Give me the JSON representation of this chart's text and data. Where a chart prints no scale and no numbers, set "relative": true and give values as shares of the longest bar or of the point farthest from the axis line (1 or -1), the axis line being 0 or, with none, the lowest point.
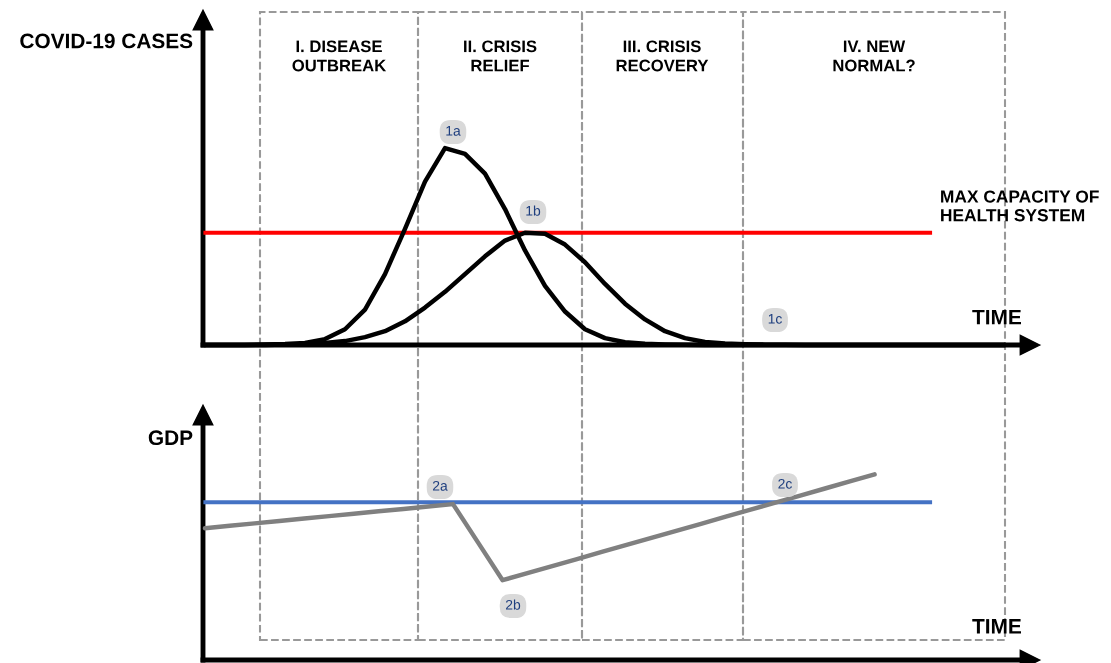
{
  "chart_data": [
    {
      "type": "line",
      "relative": true,
      "ylabel": "COVID-19 CASES",
      "xlabel": "TIME",
      "categories": [
        null,
        null,
        null,
        null,
        null,
        null,
        null,
        null,
        null,
        null,
        null,
        null,
        null,
        null,
        null,
        null,
        null,
        null,
        null,
        null,
        null,
        null,
        null,
        null,
        null,
        null,
        null,
        null,
        null,
        null,
        null,
        null,
        null,
        null,
        null,
        null,
        null,
        null,
        null,
        null,
        null
      ],
      "series": [
        {
          "color": "#000000",
          "values": [
            0,
            0,
            0,
            0.003,
            0.005,
            0.01,
            0.03,
            0.08,
            0.18,
            0.36,
            0.59,
            0.83,
            1.0,
            0.97,
            0.87,
            0.69,
            0.48,
            0.3,
            0.17,
            0.08,
            0.035,
            0.014,
            0.006,
            0.003,
            0.001,
            0,
            0,
            0,
            0,
            0,
            0,
            0,
            0,
            0,
            0,
            0,
            0,
            0,
            0,
            0,
            0
          ]
        },
        {
          "color": "#000000",
          "values": [
            0,
            0,
            0,
            0,
            0.002,
            0.004,
            0.01,
            0.02,
            0.04,
            0.07,
            0.12,
            0.19,
            0.27,
            0.36,
            0.45,
            0.53,
            0.57,
            0.565,
            0.51,
            0.42,
            0.31,
            0.21,
            0.13,
            0.07,
            0.035,
            0.015,
            0.008,
            0.004,
            0.002,
            0.001,
            0,
            0,
            0,
            0,
            0,
            0,
            0,
            0,
            0,
            0,
            0
          ]
        }
      ],
      "ref_lines": [
        {
          "axis": "y",
          "value": 0.57,
          "label": "MAX CAPACITY OF\nHEALTH SYSTEM",
          "color": "#ff0000"
        }
      ],
      "annotations": [
        "I. DISEASE\nOUTBREAK",
        "II. CRISIS\nRELIEF",
        "III. CRISIS\nRECOVERY",
        "IV. NEW\nNORMAL?",
        "1a",
        "1b",
        "1c"
      ]
    },
    {
      "type": "line",
      "relative": true,
      "ylabel": "GDP",
      "xlabel": "TIME",
      "categories": [
        null,
        null,
        null,
        null,
        null,
        null,
        null,
        null,
        null,
        null,
        null,
        null,
        null,
        null,
        null,
        null,
        null,
        null,
        null,
        null,
        null,
        null,
        null,
        null,
        null,
        null,
        null,
        null
      ],
      "series": [
        {
          "color": "#808080",
          "values": [
            0.71,
            0.723,
            0.736,
            0.749,
            0.762,
            0.775,
            0.788,
            0.801,
            0.814,
            0.827,
            0.84,
            0.635,
            0.43,
            0.468,
            0.506,
            0.544,
            0.582,
            0.62,
            0.658,
            0.696,
            0.734,
            0.772,
            0.81,
            0.848,
            0.886,
            0.924,
            0.962,
            1.0
          ]
        }
      ],
      "ref_lines": [
        {
          "axis": "y",
          "value": 0.85,
          "color": "#4472c4"
        }
      ],
      "annotations": [
        "2a",
        "2b",
        "2c"
      ]
    }
  ]
}
